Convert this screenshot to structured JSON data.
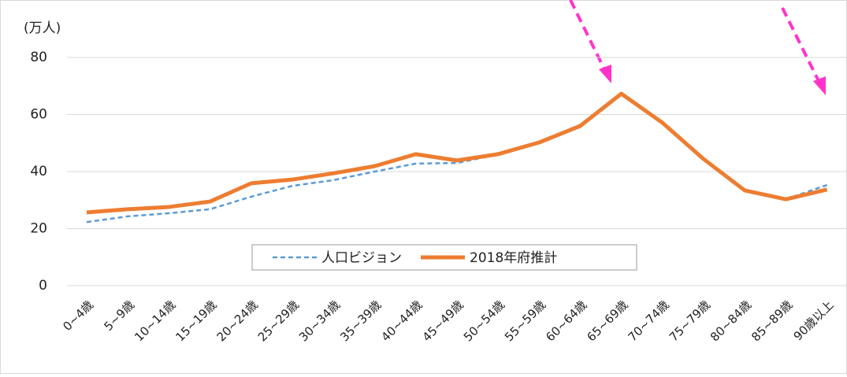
{
  "chart_data": {
    "type": "line",
    "y_label": "(万人)",
    "categories": [
      "0~4歳",
      "5~9歳",
      "10~14歳",
      "15~19歳",
      "20~24歳",
      "25~29歳",
      "30~34歳",
      "35~39歳",
      "40~44歳",
      "45~49歳",
      "50~54歳",
      "55~59歳",
      "60~64歳",
      "65~69歳",
      "70~74歳",
      "75~79歳",
      "80~84歳",
      "85~89歳",
      "90歳以上"
    ],
    "series": [
      {
        "name": "人口ビジョン",
        "color": "#5b9bd5",
        "dashed": true,
        "values": [
          22.3,
          24.3,
          25.4,
          26.8,
          31.2,
          35,
          37,
          40,
          42.8,
          43,
          46,
          50.2,
          56,
          67.3,
          57.1,
          44.4,
          33.4,
          30.3,
          35.3
        ]
      },
      {
        "name": "2018年府推計",
        "color": "#ed7d31",
        "dashed": false,
        "values": [
          25.7,
          26.8,
          27.6,
          29.5,
          35.9,
          37.2,
          39.4,
          41.9,
          46.1,
          43.9,
          46.1,
          50.2,
          56,
          67.3,
          57.1,
          44.4,
          33.4,
          30.3,
          33.7
        ]
      }
    ],
    "ylim": [
      0,
      80
    ],
    "yticks": [
      0,
      20,
      40,
      60,
      80
    ],
    "grid": true
  }
}
